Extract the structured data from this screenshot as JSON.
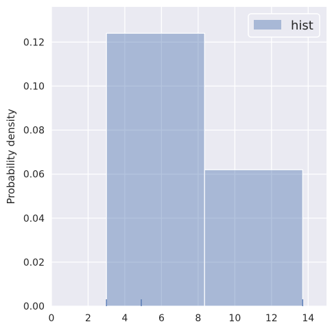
{
  "chart_data": {
    "type": "bar",
    "title": "",
    "xlabel": "",
    "ylabel": "Probability density",
    "xlim": [
      0,
      15
    ],
    "ylim": [
      0,
      0.136
    ],
    "x_ticks": [
      0,
      2,
      4,
      6,
      8,
      10,
      12,
      14
    ],
    "x_tick_labels": [
      "0",
      "2",
      "4",
      "6",
      "8",
      "10",
      "12",
      "14"
    ],
    "y_ticks": [
      0,
      0.02,
      0.04,
      0.06,
      0.08,
      0.1,
      0.12
    ],
    "y_tick_labels": [
      "0.00",
      "0.02",
      "0.04",
      "0.06",
      "0.08",
      "0.10",
      "0.12"
    ],
    "grid": true,
    "legend_position": "top-right",
    "series": [
      {
        "name": "hist",
        "color": "#4c72b0",
        "bins": [
          {
            "x0": 3.0,
            "x1": 8.35,
            "value": 0.124
          },
          {
            "x0": 8.35,
            "x1": 13.7,
            "value": 0.062
          }
        ]
      }
    ],
    "rug": {
      "color": "#4c72b0",
      "values": [
        3.0,
        4.9,
        13.7
      ]
    }
  }
}
